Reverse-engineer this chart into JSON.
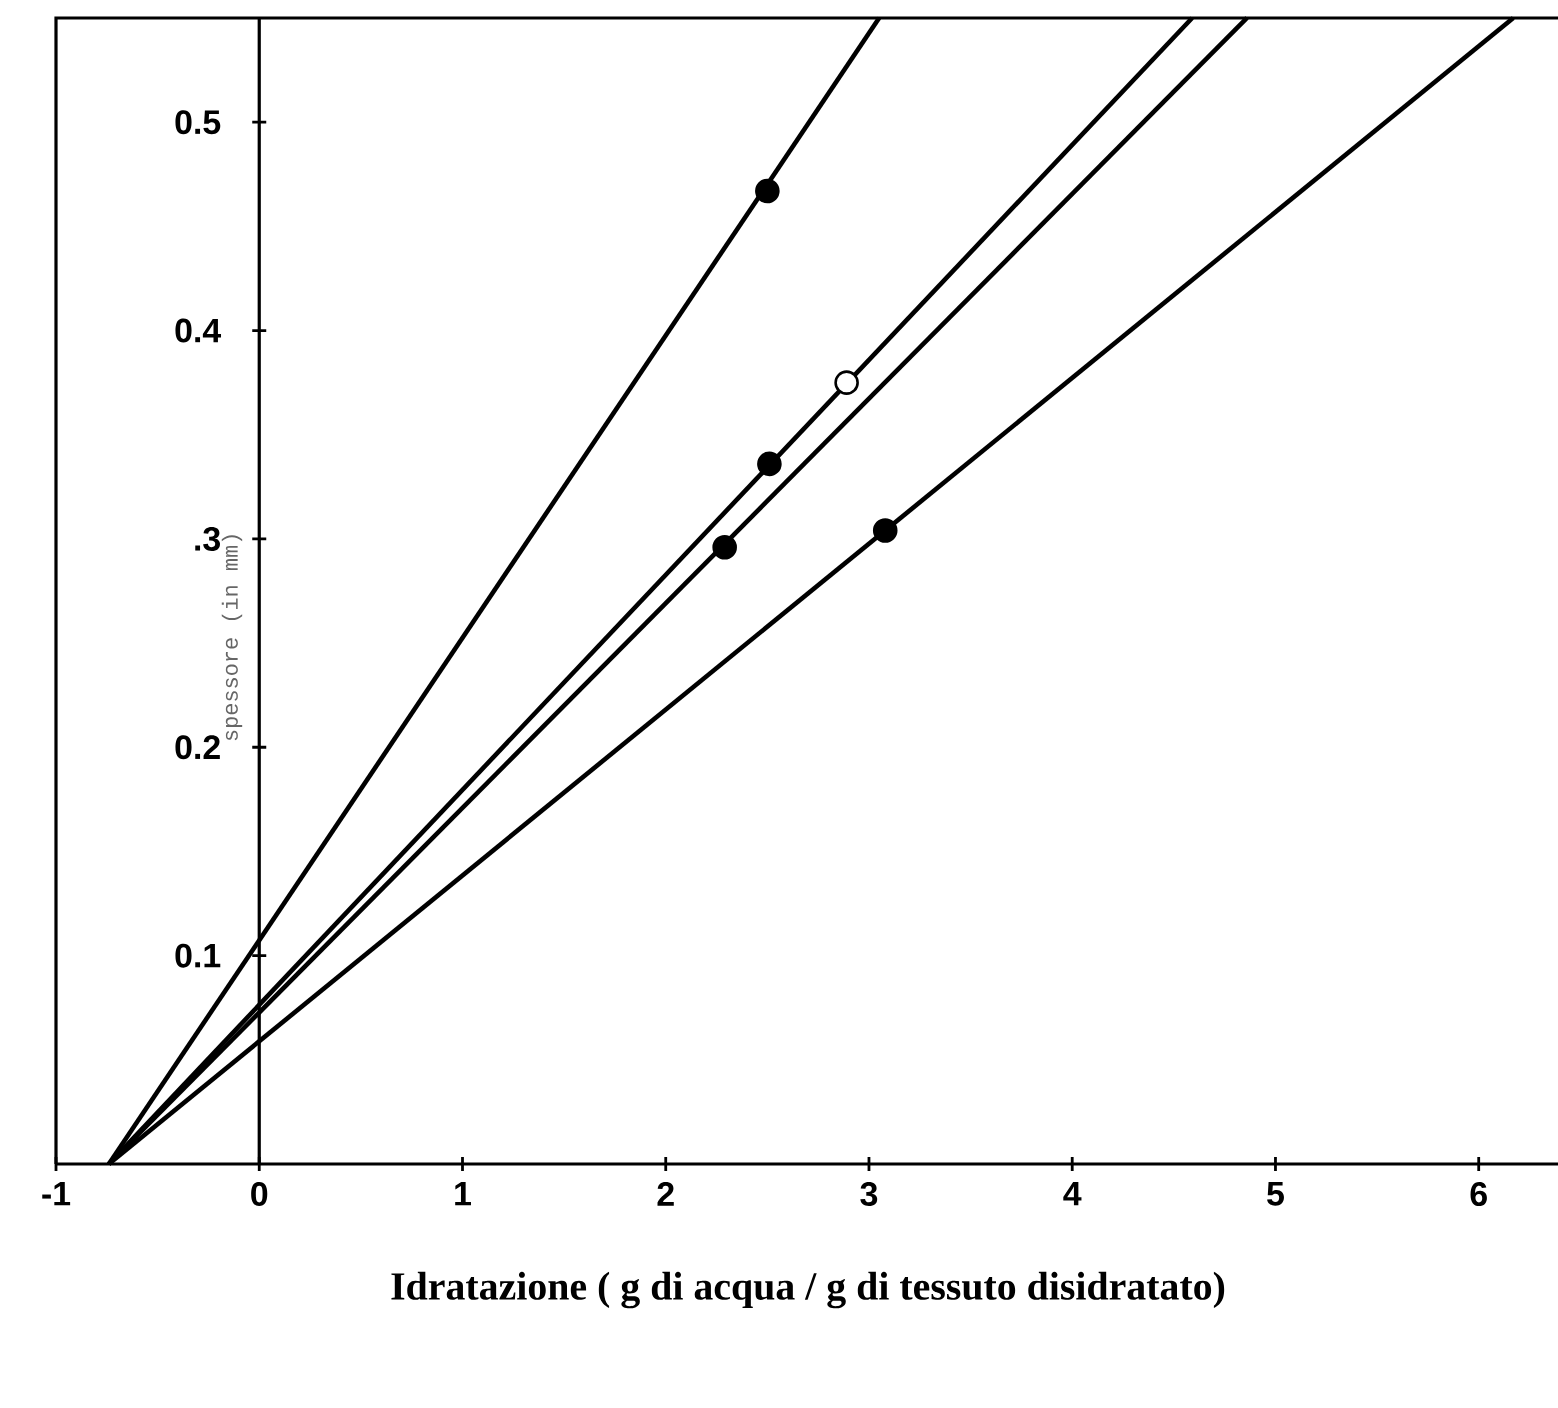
{
  "chart_data": {
    "type": "line",
    "xlabel": "Idratazione ( g di acqua / g di tessuto disidratato)",
    "ylabel": "spessore (in mm)",
    "xlim": [
      -1,
      6.4
    ],
    "ylim": [
      0,
      0.55
    ],
    "xticks": [
      -1,
      0,
      1,
      2,
      3,
      4,
      5,
      6
    ],
    "yticks": [
      0.1,
      0.2,
      {
        "value": 0.3,
        "label": ".3"
      },
      0.4,
      0.5
    ],
    "line_style": "solid",
    "series": [
      {
        "color": "#000000",
        "x": [
          -0.74,
          3.05
        ],
        "values": [
          0,
          0.55
        ]
      },
      {
        "color": "#000000",
        "x": [
          -0.74,
          4.59
        ],
        "values": [
          0,
          0.55
        ]
      },
      {
        "color": "#000000",
        "x": [
          -0.74,
          4.86
        ],
        "values": [
          0,
          0.55
        ]
      },
      {
        "color": "#000000",
        "x": [
          -0.74,
          6.17
        ],
        "values": [
          0,
          0.55
        ]
      },
      {
        "type": "scatter",
        "color": "#000000",
        "x": [
          2.5,
          2.51,
          2.29,
          3.08
        ],
        "values": [
          0.467,
          0.336,
          0.296,
          0.304
        ]
      },
      {
        "type": "scatter",
        "color": "#ffffff",
        "x": [
          2.89
        ],
        "values": [
          0.375
        ]
      }
    ]
  }
}
